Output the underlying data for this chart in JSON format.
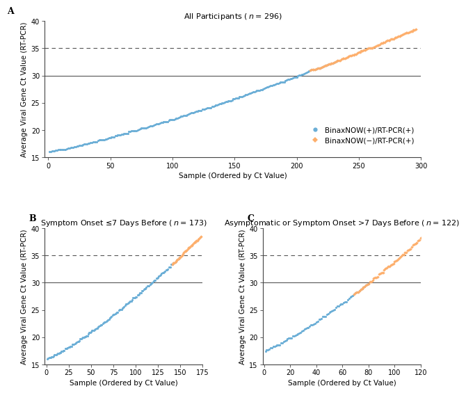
{
  "panel_A": {
    "title": "All Participants ( η = 296)",
    "title_italic_n": "All Participants ( n = 296)",
    "n_total": 296,
    "n_blue": 233,
    "n_orange_start": 210,
    "ct_min": 16.0,
    "ct_max": 38.5,
    "xlim": [
      -3,
      300
    ],
    "xticks": [
      0,
      50,
      100,
      150,
      200,
      250,
      300
    ],
    "label": "A"
  },
  "panel_B": {
    "title_italic_n": "Symptom Onset ≤7 Days Before ( η = 173)",
    "title_italic_n2": "Symptom Onset ≤7 Days Before ( n = 173)",
    "n_total": 173,
    "n_blue": 148,
    "n_orange_start": 140,
    "ct_min": 16.0,
    "ct_max": 38.5,
    "xlim": [
      -2,
      175
    ],
    "xticks": [
      0,
      25,
      50,
      75,
      100,
      125,
      150,
      175
    ],
    "label": "B"
  },
  "panel_C": {
    "title_italic_n2": "Asymptomatic or Symptom Onset >7 Days Before ( n = 122)",
    "n_total": 122,
    "n_blue": 80,
    "n_orange_start": 68,
    "ct_min": 17.5,
    "ct_max": 38.5,
    "xlim": [
      -1,
      120
    ],
    "xticks": [
      0,
      20,
      40,
      60,
      80,
      100,
      120
    ],
    "label": "C"
  },
  "ylim": [
    15,
    40
  ],
  "yticks": [
    15,
    20,
    25,
    30,
    35,
    40
  ],
  "ylabel": "Average Viral Gene Ct Value (RT-PCR)",
  "xlabel": "Sample (Ordered by Ct Value)",
  "hline_solid": 30,
  "hline_dashed": 35,
  "color_blue": "#6BAED6",
  "color_orange": "#FDAE6B",
  "marker_blue": "o",
  "marker_orange": "D",
  "legend_label_blue": "BinaxNOW(+)/RT-PCR(+)",
  "legend_label_orange": "BinaxNOW(−)/RT-PCR(+)",
  "title_fontsize": 8.0,
  "axis_label_fontsize": 7.5,
  "tick_fontsize": 7.0,
  "legend_fontsize": 7.5,
  "panel_label_fontsize": 9,
  "marker_size": 5,
  "spine_color": "#444444",
  "line_color": "#555555"
}
